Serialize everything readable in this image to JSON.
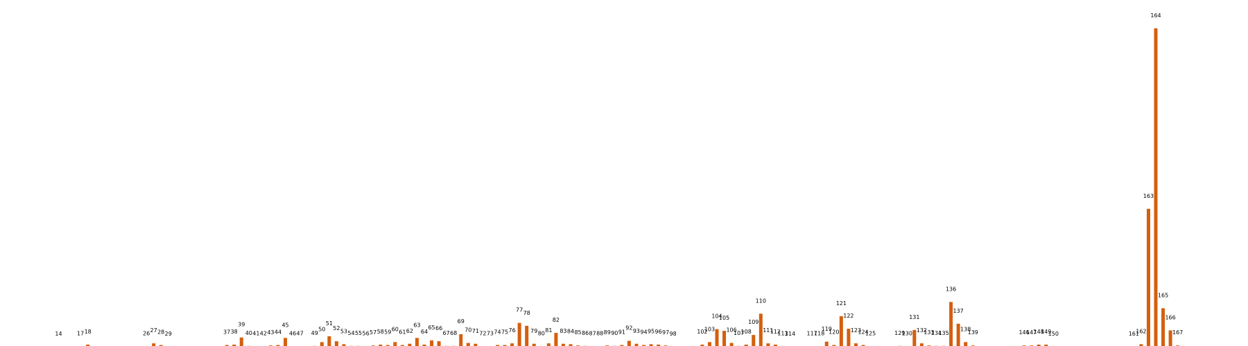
{
  "chart_data": {
    "type": "bar",
    "title": "",
    "xlabel": "",
    "ylabel": "",
    "grid": false,
    "bar_color": "#d45f0e",
    "categories": [
      "14",
      "17",
      "18",
      "26",
      "27",
      "28",
      "29",
      "37",
      "38",
      "39",
      "40",
      "41",
      "42",
      "43",
      "44",
      "45",
      "46",
      "47",
      "49",
      "50",
      "51",
      "52",
      "53",
      "54",
      "55",
      "56",
      "57",
      "58",
      "59",
      "60",
      "61",
      "62",
      "63",
      "64",
      "65",
      "66",
      "67",
      "68",
      "69",
      "70",
      "71",
      "72",
      "73",
      "74",
      "75",
      "76",
      "77",
      "78",
      "79",
      "80",
      "81",
      "82",
      "83",
      "84",
      "85",
      "86",
      "87",
      "88",
      "89",
      "90",
      "91",
      "92",
      "93",
      "94",
      "95",
      "96",
      "97",
      "98",
      "102",
      "103",
      "104",
      "105",
      "106",
      "107",
      "108",
      "109",
      "110",
      "111",
      "112",
      "113",
      "114",
      "117",
      "118",
      "119",
      "120",
      "121",
      "122",
      "123",
      "124",
      "125",
      "129",
      "130",
      "131",
      "132",
      "133",
      "134",
      "135",
      "136",
      "137",
      "138",
      "139",
      "146",
      "147",
      "148",
      "149",
      "150",
      "161",
      "162",
      "163",
      "164",
      "165",
      "166",
      "167"
    ],
    "values": [
      0,
      1,
      5,
      1,
      8,
      4,
      0,
      4,
      5,
      22,
      2,
      1,
      1,
      3,
      4,
      21,
      1,
      1,
      2,
      11,
      25,
      13,
      6,
      2,
      2,
      1,
      3,
      5,
      4,
      11,
      4,
      7,
      21,
      5,
      15,
      13,
      2,
      2,
      30,
      9,
      7,
      1,
      1,
      4,
      4,
      8,
      57,
      50,
      7,
      1,
      8,
      33,
      7,
      6,
      3,
      2,
      1,
      1,
      3,
      2,
      4,
      14,
      7,
      4,
      6,
      5,
      3,
      0,
      5,
      11,
      42,
      38,
      9,
      2,
      5,
      28,
      79,
      8,
      5,
      1,
      0,
      1,
      1,
      12,
      4,
      73,
      43,
      8,
      4,
      1,
      2,
      1,
      40,
      8,
      3,
      2,
      2,
      107,
      55,
      11,
      3,
      3,
      3,
      5,
      5,
      0,
      0,
      6,
      330,
      762,
      92,
      39,
      3
    ],
    "ylim": [
      0,
      790
    ]
  }
}
